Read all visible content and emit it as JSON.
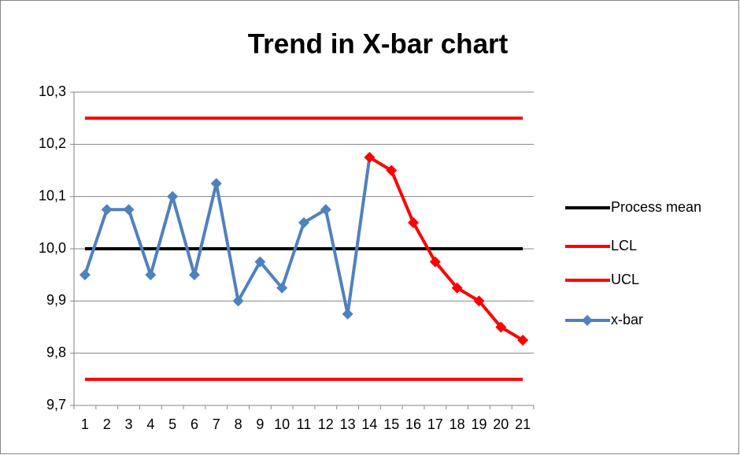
{
  "chart_data": {
    "type": "line",
    "title": "Trend in X-bar chart",
    "categories": [
      "1",
      "2",
      "3",
      "4",
      "5",
      "6",
      "7",
      "8",
      "9",
      "10",
      "11",
      "12",
      "13",
      "14",
      "15",
      "16",
      "17",
      "18",
      "19",
      "20",
      "21"
    ],
    "ylim": [
      9.7,
      10.3
    ],
    "yticks": [
      {
        "value": 9.7,
        "label": "9,7"
      },
      {
        "value": 9.8,
        "label": "9,8"
      },
      {
        "value": 9.9,
        "label": "9,9"
      },
      {
        "value": 10.0,
        "label": "10,0"
      },
      {
        "value": 10.1,
        "label": "10,1"
      },
      {
        "value": 10.2,
        "label": "10,2"
      },
      {
        "value": 10.3,
        "label": "10,3"
      }
    ],
    "grid": true,
    "legend": "right",
    "series": [
      {
        "name": "Process mean",
        "color": "#000000",
        "values": [
          10,
          10,
          10,
          10,
          10,
          10,
          10,
          10,
          10,
          10,
          10,
          10,
          10,
          10,
          10,
          10,
          10,
          10,
          10,
          10,
          10
        ]
      },
      {
        "name": "LCL",
        "color": "#ff0000",
        "values": [
          9.75,
          9.75,
          9.75,
          9.75,
          9.75,
          9.75,
          9.75,
          9.75,
          9.75,
          9.75,
          9.75,
          9.75,
          9.75,
          9.75,
          9.75,
          9.75,
          9.75,
          9.75,
          9.75,
          9.75,
          9.75
        ]
      },
      {
        "name": "UCL",
        "color": "#ff0000",
        "values": [
          10.25,
          10.25,
          10.25,
          10.25,
          10.25,
          10.25,
          10.25,
          10.25,
          10.25,
          10.25,
          10.25,
          10.25,
          10.25,
          10.25,
          10.25,
          10.25,
          10.25,
          10.25,
          10.25,
          10.25,
          10.25
        ]
      },
      {
        "name": "x-bar",
        "color": "#4f81bd",
        "marker": "diamond",
        "values": [
          9.95,
          10.075,
          10.075,
          9.95,
          10.1,
          9.95,
          10.125,
          9.9,
          9.975,
          9.925,
          10.05,
          10.075,
          9.875,
          10.175,
          10.15,
          10.05,
          9.975,
          9.925,
          9.9,
          9.85,
          9.825
        ],
        "point_colors": [
          "#4f81bd",
          "#4f81bd",
          "#4f81bd",
          "#4f81bd",
          "#4f81bd",
          "#4f81bd",
          "#4f81bd",
          "#4f81bd",
          "#4f81bd",
          "#4f81bd",
          "#4f81bd",
          "#4f81bd",
          "#4f81bd",
          "#ff0000",
          "#ff0000",
          "#ff0000",
          "#ff0000",
          "#ff0000",
          "#ff0000",
          "#ff0000",
          "#ff0000"
        ]
      }
    ]
  }
}
